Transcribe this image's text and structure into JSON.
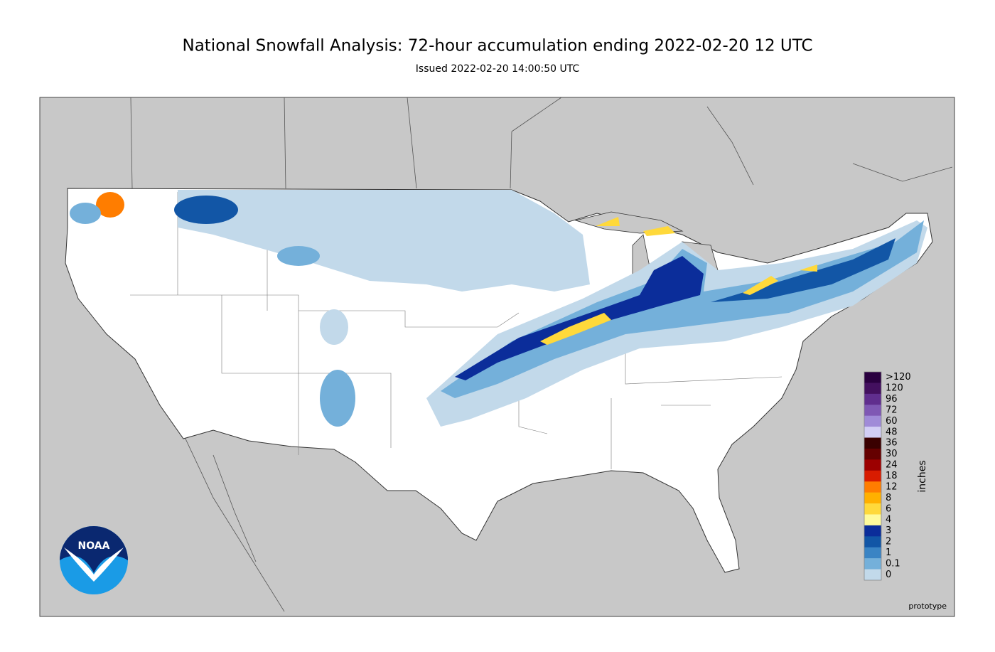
{
  "header": {
    "title": "National Snowfall Analysis: 72-hour accumulation ending 2022-02-20 12 UTC",
    "subtitle": "Issued 2022-02-20 14:00:50 UTC"
  },
  "legend": {
    "unit": "inches",
    "levels": [
      {
        "value": 120,
        "label": ">120"
      },
      120,
      96,
      72,
      60,
      48,
      36,
      30,
      24,
      18,
      12,
      8,
      6,
      4,
      3,
      2,
      1,
      0.1,
      0
    ],
    "colors": [
      "#2a0040",
      "#43105f",
      "#602e8e",
      "#7f58b4",
      "#a08bd8",
      "#d2cef5",
      "#3a0000",
      "#650000",
      "#9c0000",
      "#d81c00",
      "#ff7d00",
      "#ffb000",
      "#ffd93b",
      "#fffb9c",
      "#0b2d9a",
      "#1256a6",
      "#3a84c4",
      "#74b0da",
      "#c2d9ea"
    ],
    "colors_tail": "#ffffff"
  },
  "footer": {
    "note": "prototype",
    "logo_text": "NOAA"
  }
}
